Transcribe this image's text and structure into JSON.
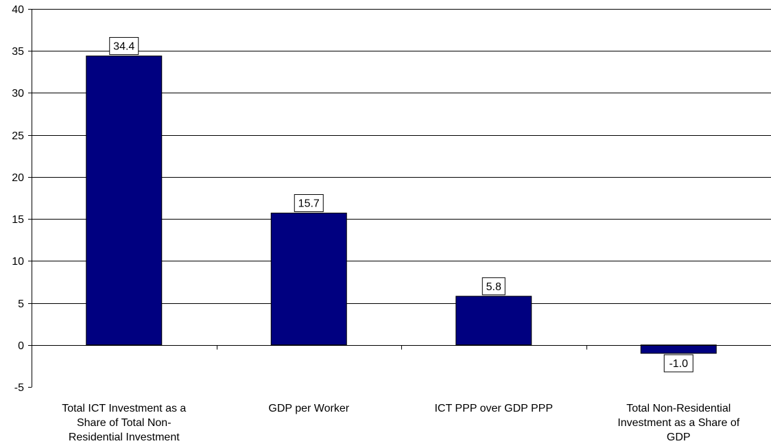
{
  "chart_data": {
    "type": "bar",
    "categories": [
      "Total ICT Investment as a Share of Total Non-Residential Investment",
      "GDP per Worker",
      "ICT PPP over GDP PPP",
      "Total Non-Residential Investment as a Share of GDP"
    ],
    "category_lines": [
      [
        "Total ICT Investment as a",
        "Share of Total Non-",
        "Residential Investment"
      ],
      [
        "GDP per Worker"
      ],
      [
        "ICT PPP over GDP PPP"
      ],
      [
        "Total Non-Residential",
        "Investment as a Share of",
        "GDP"
      ]
    ],
    "values": [
      34.4,
      15.7,
      5.8,
      -1.0
    ],
    "data_labels": [
      "34.4",
      "15.7",
      "5.8",
      "-1.0"
    ],
    "yticks": [
      -5,
      0,
      5,
      10,
      15,
      20,
      25,
      30,
      35,
      40
    ],
    "ylim": [
      -5,
      40
    ],
    "gridlines": true,
    "bar_color": "#000080",
    "title": "",
    "xlabel": "",
    "ylabel": ""
  }
}
